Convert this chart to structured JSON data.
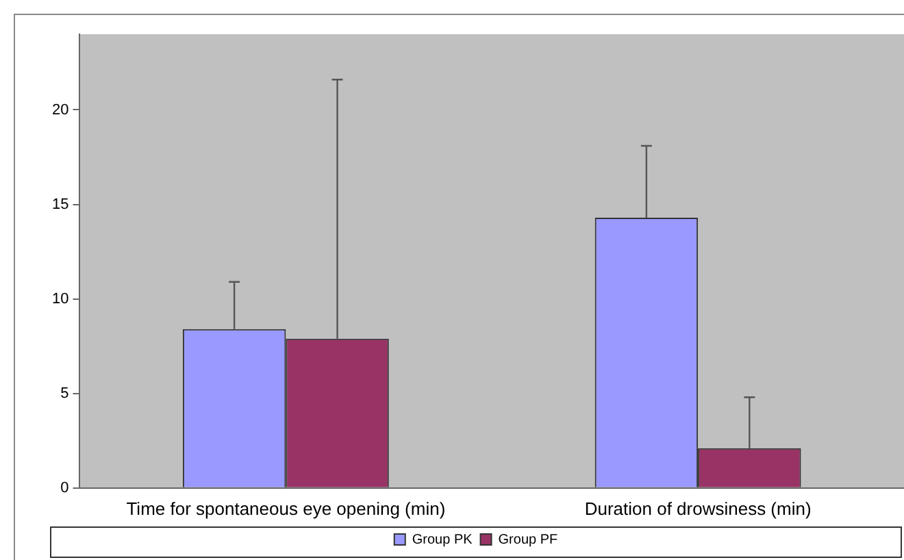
{
  "chart_data": {
    "type": "bar",
    "categories": [
      "Time for spontaneous eye opening (min)",
      "Duration of drowsiness (min)"
    ],
    "series": [
      {
        "name": "Group PK",
        "color": "#9999ff",
        "values": [
          8.4,
          14.3
        ],
        "errors": [
          [
            8.4,
            10.9
          ],
          [
            14.3,
            18.1
          ]
        ]
      },
      {
        "name": "Group PF",
        "color": "#993366",
        "values": [
          7.9,
          2.1
        ],
        "errors": [
          [
            7.9,
            21.6
          ],
          [
            2.1,
            4.8
          ]
        ]
      }
    ],
    "ylim": [
      0,
      24
    ],
    "yticks": [
      0,
      5,
      10,
      15,
      20
    ],
    "grid": false,
    "legend": "bottom"
  }
}
